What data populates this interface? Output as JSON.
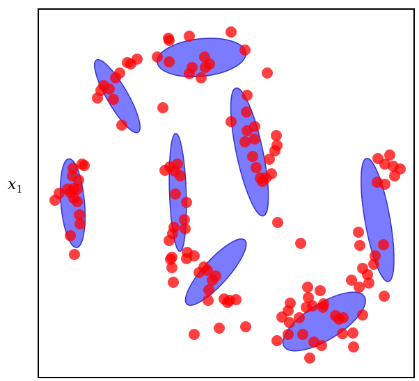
{
  "chart_data": {
    "type": "scatter",
    "xlabel": "",
    "ylabel": {
      "base": "x",
      "sub": "1"
    },
    "xlim": [
      0,
      540
    ],
    "ylim": [
      0,
      530
    ],
    "grid": false,
    "legend": "none",
    "colors": {
      "points": "#ff0000",
      "ellipse_fill": "#6464ff",
      "ellipse_stroke": "#3333cc",
      "frame": "#000000"
    },
    "clusters": [
      {
        "ellipse": {
          "cx": 234.5,
          "cy": 460.3,
          "rx": 64,
          "ry": 27,
          "angle": 6
        },
        "points": [
          [
            187,
            488
          ],
          [
            217,
            491
          ],
          [
            297,
            471
          ],
          [
            171,
            461
          ],
          [
            239,
            461
          ],
          [
            246,
            451
          ],
          [
            221,
            446
          ],
          [
            188,
            454
          ],
          [
            217,
            437
          ],
          [
            240,
            446
          ],
          [
            234,
            431
          ],
          [
            188,
            485
          ],
          [
            277,
            497
          ],
          [
            329,
            438
          ]
        ]
      },
      {
        "ellipse": {
          "cx": 113.5,
          "cy": 404.7,
          "rx": 60,
          "ry": 15,
          "angle": -60
        },
        "points": [
          [
            142,
            458
          ],
          [
            133,
            451
          ],
          [
            117,
            438
          ],
          [
            111,
            431
          ],
          [
            102,
            415
          ],
          [
            94,
            420
          ],
          [
            108,
            400
          ],
          [
            85,
            402
          ],
          [
            120,
            363
          ],
          [
            90,
            413
          ],
          [
            128,
            453
          ]
        ]
      },
      {
        "ellipse": {
          "cx": 49.5,
          "cy": 250.7,
          "rx": 64,
          "ry": 17,
          "angle": -85
        },
        "points": [
          [
            63,
            307
          ],
          [
            50,
            301
          ],
          [
            49,
            290
          ],
          [
            58,
            284
          ],
          [
            56,
            271
          ],
          [
            42,
            271
          ],
          [
            51,
            258
          ],
          [
            56,
            253
          ],
          [
            60,
            221
          ],
          [
            59,
            234
          ],
          [
            46,
            266
          ],
          [
            51,
            272
          ],
          [
            30,
            265
          ],
          [
            24,
            255
          ],
          [
            66,
            305
          ],
          [
            46,
            204
          ],
          [
            52,
            177
          ]
        ]
      },
      {
        "ellipse": {
          "cx": 200.5,
          "cy": 266.3,
          "rx": 85,
          "ry": 12,
          "angle": -88
        },
        "points": [
          [
            200,
            307
          ],
          [
            189,
            303
          ],
          [
            196,
            297
          ],
          [
            204,
            290
          ],
          [
            182,
            298
          ],
          [
            197,
            264
          ],
          [
            210,
            227
          ],
          [
            211,
            214
          ],
          [
            188,
            197
          ],
          [
            179,
            388
          ],
          [
            213,
            252
          ],
          [
            195,
            216
          ],
          [
            193,
            207
          ]
        ]
      },
      {
        "ellipse": {
          "cx": 303.6,
          "cy": 324.4,
          "rx": 94,
          "ry": 19,
          "angle": -78
        },
        "points": [
          [
            297,
            339
          ],
          [
            300,
            355
          ],
          [
            311,
            343
          ],
          [
            311,
            361
          ],
          [
            308,
            318
          ],
          [
            313,
            302
          ],
          [
            327,
            287
          ],
          [
            319,
            287
          ],
          [
            335,
            293
          ],
          [
            332,
            314
          ],
          [
            322,
            282
          ],
          [
            343,
            334
          ],
          [
            342,
            348
          ],
          [
            340,
            326
          ],
          [
            344,
            223
          ],
          [
            377,
            193
          ],
          [
            277,
            368
          ],
          [
            299,
            382
          ],
          [
            300,
            406
          ]
        ]
      },
      {
        "ellipse": {
          "cx": 487.4,
          "cy": 226.6,
          "rx": 90,
          "ry": 18,
          "angle": -80
        },
        "points": [
          [
            488,
            315
          ],
          [
            505,
            320
          ],
          [
            510,
            304
          ],
          [
            498,
            307
          ],
          [
            487,
            281
          ],
          [
            498,
            278
          ],
          [
            520,
            300
          ],
          [
            512,
            290
          ],
          [
            496,
            191
          ],
          [
            482,
            163
          ],
          [
            462,
            190
          ],
          [
            460,
            209
          ],
          [
            473,
            148
          ],
          [
            484,
            175
          ],
          [
            450,
            140
          ],
          [
            466,
            157
          ]
        ]
      },
      {
        "ellipse": {
          "cx": 255.1,
          "cy": 151.6,
          "rx": 62,
          "ry": 18,
          "angle": 48
        },
        "points": [
          [
            214,
            180
          ],
          [
            224,
            175
          ],
          [
            243,
            154
          ],
          [
            255,
            146
          ],
          [
            245,
            126
          ],
          [
            250,
            140
          ],
          [
            238,
            159
          ],
          [
            284,
            112
          ],
          [
            298,
            73
          ],
          [
            272,
            108
          ],
          [
            244,
            111
          ],
          [
            267,
            113
          ],
          [
            260,
            71
          ],
          [
            192,
            173
          ],
          [
            275,
            111
          ],
          [
            194,
            137
          ],
          [
            192,
            158
          ],
          [
            224,
            62
          ],
          [
            213,
            171
          ],
          [
            190,
            170
          ],
          [
            231,
            151
          ]
        ]
      },
      {
        "ellipse": {
          "cx": 410.9,
          "cy": 80.5,
          "rx": 68,
          "ry": 26,
          "angle": 32
        },
        "points": [
          [
            387,
            130
          ],
          [
            409,
            101
          ],
          [
            432,
            84
          ],
          [
            427,
            89
          ],
          [
            388,
            115
          ],
          [
            438,
            86
          ],
          [
            437,
            63
          ],
          [
            410,
            106
          ],
          [
            405,
            125
          ],
          [
            394,
            103
          ],
          [
            466,
            90
          ],
          [
            452,
            64
          ],
          [
            385,
            101
          ],
          [
            380,
            62
          ],
          [
            453,
            44
          ],
          [
            396,
            51
          ],
          [
            461,
            130
          ],
          [
            475,
            136
          ],
          [
            375,
            86
          ],
          [
            361,
            79
          ],
          [
            350,
            87
          ],
          [
            359,
            62
          ],
          [
            362,
            107
          ],
          [
            407,
            46
          ],
          [
            359,
            96
          ],
          [
            343,
            53
          ],
          [
            390,
            28
          ],
          [
            497,
            117
          ]
        ]
      }
    ]
  }
}
